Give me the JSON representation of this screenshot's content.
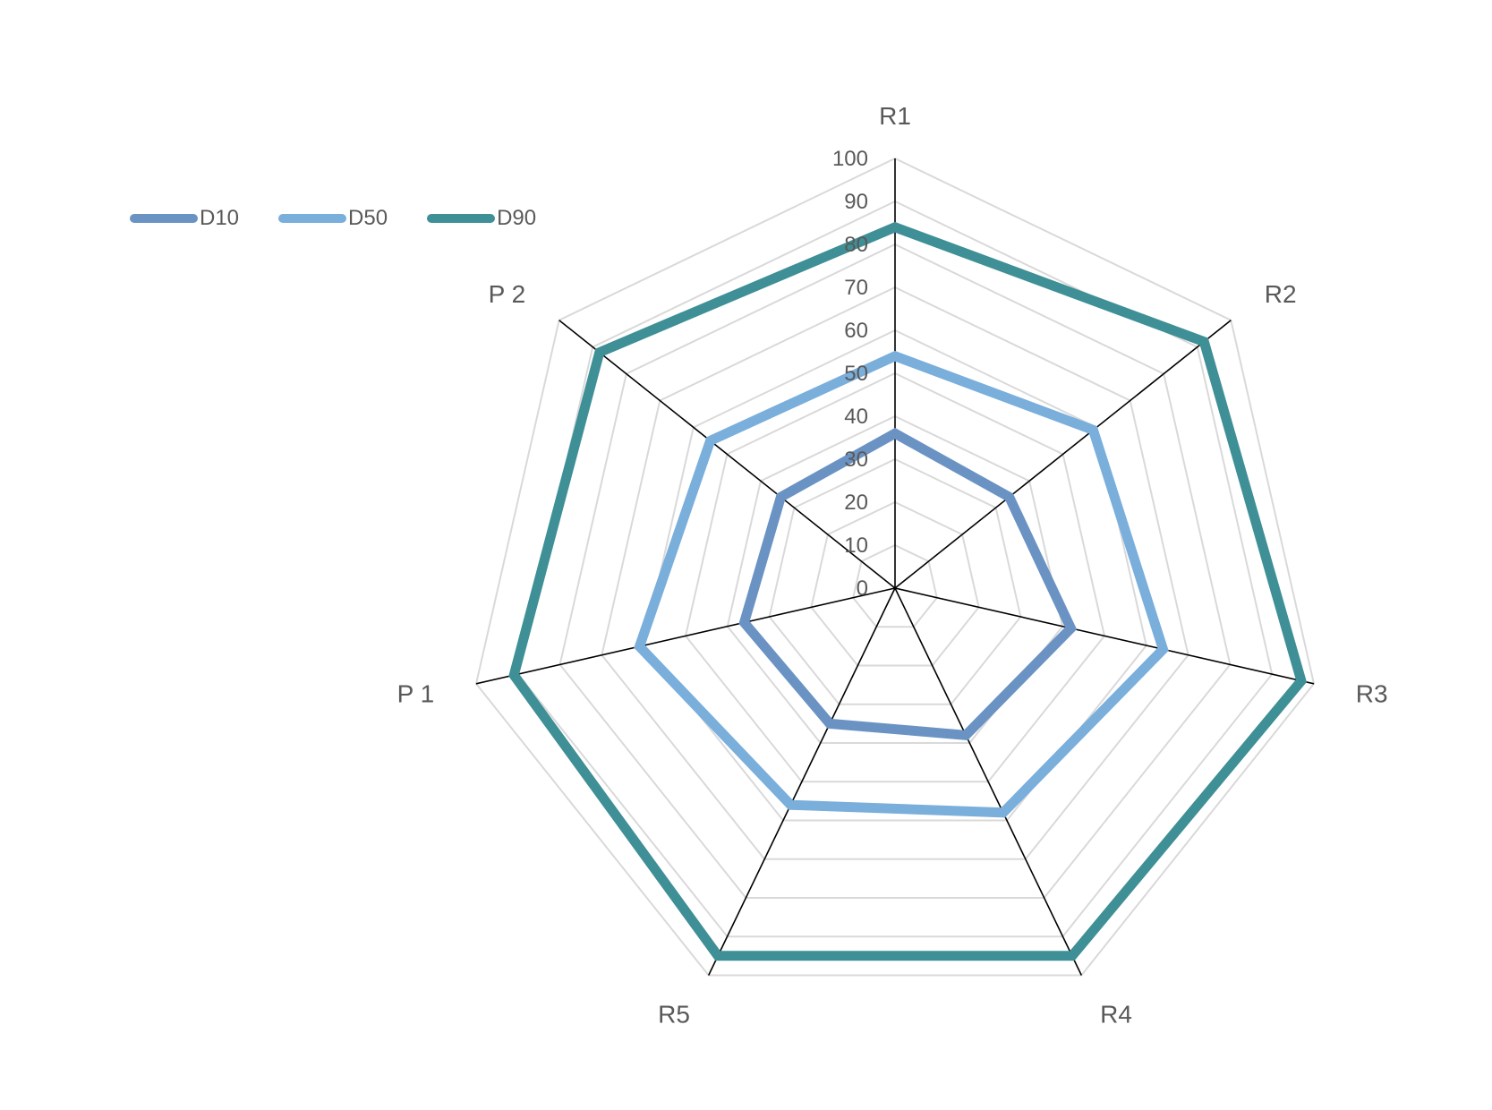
{
  "chart_data": {
    "type": "radar",
    "categories": [
      "R1",
      "R2",
      "R3",
      "R4",
      "R5",
      "P 1",
      "P 2"
    ],
    "rmin": 0,
    "rmax": 100,
    "ticks": [
      0,
      10,
      20,
      30,
      40,
      50,
      60,
      70,
      80,
      90,
      100
    ],
    "grid": true,
    "legend_position": "top-left",
    "series": [
      {
        "name": "D10",
        "color": "#6a93c4",
        "values": [
          36,
          34,
          42,
          38,
          35,
          36,
          34
        ]
      },
      {
        "name": "D50",
        "color": "#7aaedb",
        "values": [
          54,
          59,
          64,
          58,
          56,
          61,
          55
        ]
      },
      {
        "name": "D90",
        "color": "#3f8f96",
        "values": [
          84,
          92,
          97,
          95,
          95,
          91,
          88
        ]
      }
    ]
  }
}
